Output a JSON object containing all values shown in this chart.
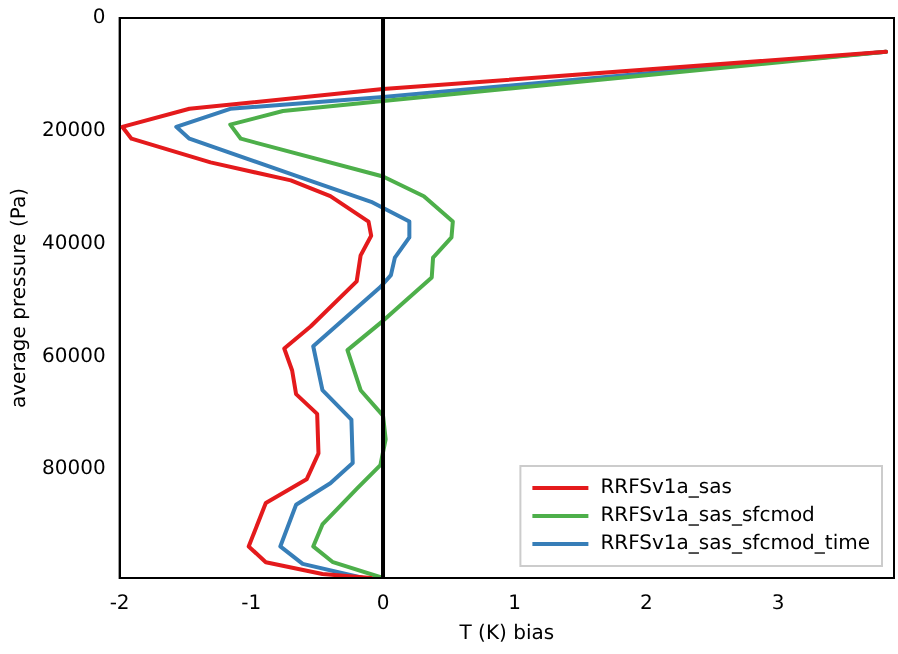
{
  "chart_data": {
    "type": "line",
    "xlabel": "T (K) bias",
    "ylabel": "average pressure (Pa)",
    "xlim": [
      -2,
      3.88
    ],
    "xticks": [
      -2,
      -1,
      0,
      1,
      2,
      3
    ],
    "ylim": [
      99300,
      0
    ],
    "yticks": [
      0,
      20000,
      40000,
      60000,
      80000
    ],
    "grid": false,
    "legend": "bottom right",
    "marker": "none",
    "line_style": "solid",
    "ref_lines": [
      {
        "axis": "x",
        "value": 0,
        "color": "#000000"
      }
    ],
    "series": [
      {
        "name": "RRFSv1a_sas",
        "color": "#e41a1c",
        "x": [
          3.82,
          0,
          -1.47,
          -1.98,
          -1.91,
          -1.31,
          -0.7,
          -0.4,
          -0.11,
          -0.09,
          -0.17,
          -0.2,
          -0.55,
          -0.75,
          -0.69,
          -0.66,
          -0.5,
          -0.49,
          -0.58,
          -0.89,
          -1.02,
          -0.89,
          -0.46,
          -0.09
        ],
        "values": [
          6000,
          12600,
          16100,
          19300,
          21400,
          25600,
          28800,
          31600,
          36100,
          38600,
          42100,
          46700,
          54700,
          58600,
          62500,
          66700,
          70200,
          77200,
          81800,
          86000,
          93700,
          96500,
          98600,
          99300
        ]
      },
      {
        "name": "RRFSv1a_sas_sfcmod",
        "color": "#4daf4a",
        "x": [
          3.82,
          0,
          -0.76,
          -1.16,
          -1.08,
          0,
          0.31,
          0.53,
          0.52,
          0.38,
          0.37,
          0,
          -0.27,
          -0.17,
          0,
          0.02,
          -0.02,
          -0.2,
          -0.46,
          -0.53,
          -0.38,
          0
        ],
        "values": [
          6000,
          14700,
          16500,
          18900,
          21400,
          28100,
          31600,
          36100,
          38900,
          42500,
          46000,
          53700,
          58900,
          66000,
          70500,
          74700,
          79300,
          83500,
          89800,
          93700,
          96500,
          99300
        ]
      },
      {
        "name": "RRFSv1a_sas_sfcmod_time",
        "color": "#377eb8",
        "x": [
          3.82,
          0,
          -1.16,
          -1.57,
          -1.47,
          -0.61,
          -0.09,
          0.2,
          0.2,
          0.09,
          0.06,
          -0.02,
          -0.53,
          -0.46,
          -0.24,
          -0.23,
          -0.4,
          -0.66,
          -0.78,
          -0.61,
          -0.15
        ],
        "values": [
          6000,
          14000,
          16100,
          19300,
          21400,
          28400,
          32600,
          36100,
          38900,
          42500,
          45600,
          47700,
          58200,
          66000,
          71200,
          78900,
          82500,
          86300,
          93700,
          96800,
          99300
        ]
      }
    ]
  }
}
